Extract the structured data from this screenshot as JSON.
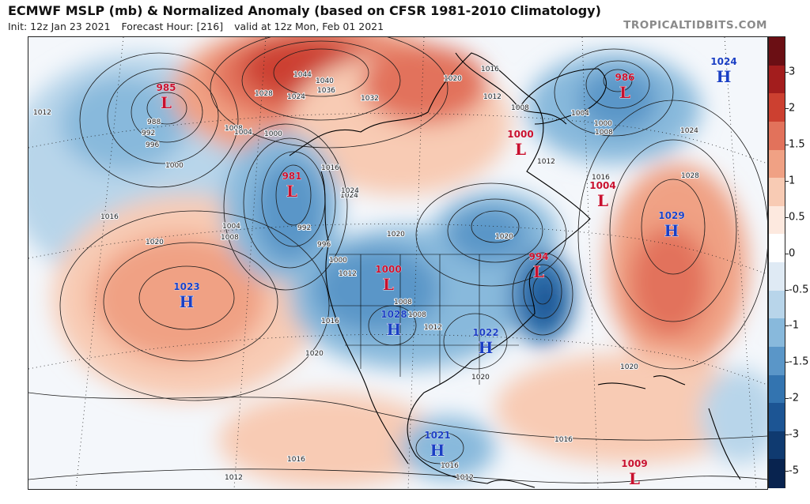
{
  "header": {
    "title": "ECMWF MSLP (mb) & Normalized Anomaly (based on CFSR 1981-2010 Climatology)",
    "init": "Init: 12z Jan 23 2021",
    "forecast_hour": "Forecast Hour: [216]",
    "valid": "valid at 12z Mon, Feb 01 2021",
    "credit": "TROPICALTIDBITS.COM"
  },
  "colorbar": {
    "ticks": [
      "3",
      "2",
      "1.5",
      "1",
      "0.5",
      "0",
      "-0.5",
      "-1",
      "-1.5",
      "-2",
      "-3",
      "-5"
    ],
    "colors": [
      "#6b0f14",
      "#a31d1d",
      "#cc4030",
      "#e2725b",
      "#f0a184",
      "#f8cbb4",
      "#fde9df",
      "#ffffff",
      "#dfeaf4",
      "#b8d5ea",
      "#88b9dc",
      "#5a96c8",
      "#3374b0",
      "#1c5594",
      "#0f3a70",
      "#08234f"
    ]
  },
  "centers": [
    {
      "type": "L",
      "value": "985"
    },
    {
      "type": "L",
      "value": "981"
    },
    {
      "type": "L",
      "value": "1000"
    },
    {
      "type": "L",
      "value": "986"
    },
    {
      "type": "H",
      "value": "1024"
    },
    {
      "type": "L",
      "value": "1004"
    },
    {
      "type": "H",
      "value": "1029"
    },
    {
      "type": "L",
      "value": "994"
    },
    {
      "type": "L",
      "value": "1000"
    },
    {
      "type": "H",
      "value": "1023"
    },
    {
      "type": "H",
      "value": "1028"
    },
    {
      "type": "H",
      "value": "1022"
    },
    {
      "type": "H",
      "value": "1021"
    },
    {
      "type": "L",
      "value": "1009"
    }
  ],
  "isobar_labels": [
    "1012",
    "988",
    "992",
    "996",
    "1000",
    "1008",
    "1004",
    "1000",
    "1044",
    "1040",
    "1036",
    "1028",
    "1024",
    "1032",
    "1020",
    "1016",
    "1012",
    "1008",
    "1004",
    "1000",
    "1008",
    "1024",
    "1016",
    "1024",
    "1020",
    "1012",
    "1016",
    "1016",
    "1004",
    "1008",
    "1020",
    "992",
    "996",
    "1000",
    "1012",
    "1008",
    "1008",
    "1012",
    "1016",
    "1020",
    "1020",
    "1020",
    "1016",
    "1016",
    "1012",
    "1016",
    "1012",
    "1024",
    "1028",
    "1020"
  ],
  "colors": {
    "low": "#c8102e",
    "high": "#1a3fc4",
    "land_border": "#000000",
    "isobar": "#1a1a1a"
  }
}
